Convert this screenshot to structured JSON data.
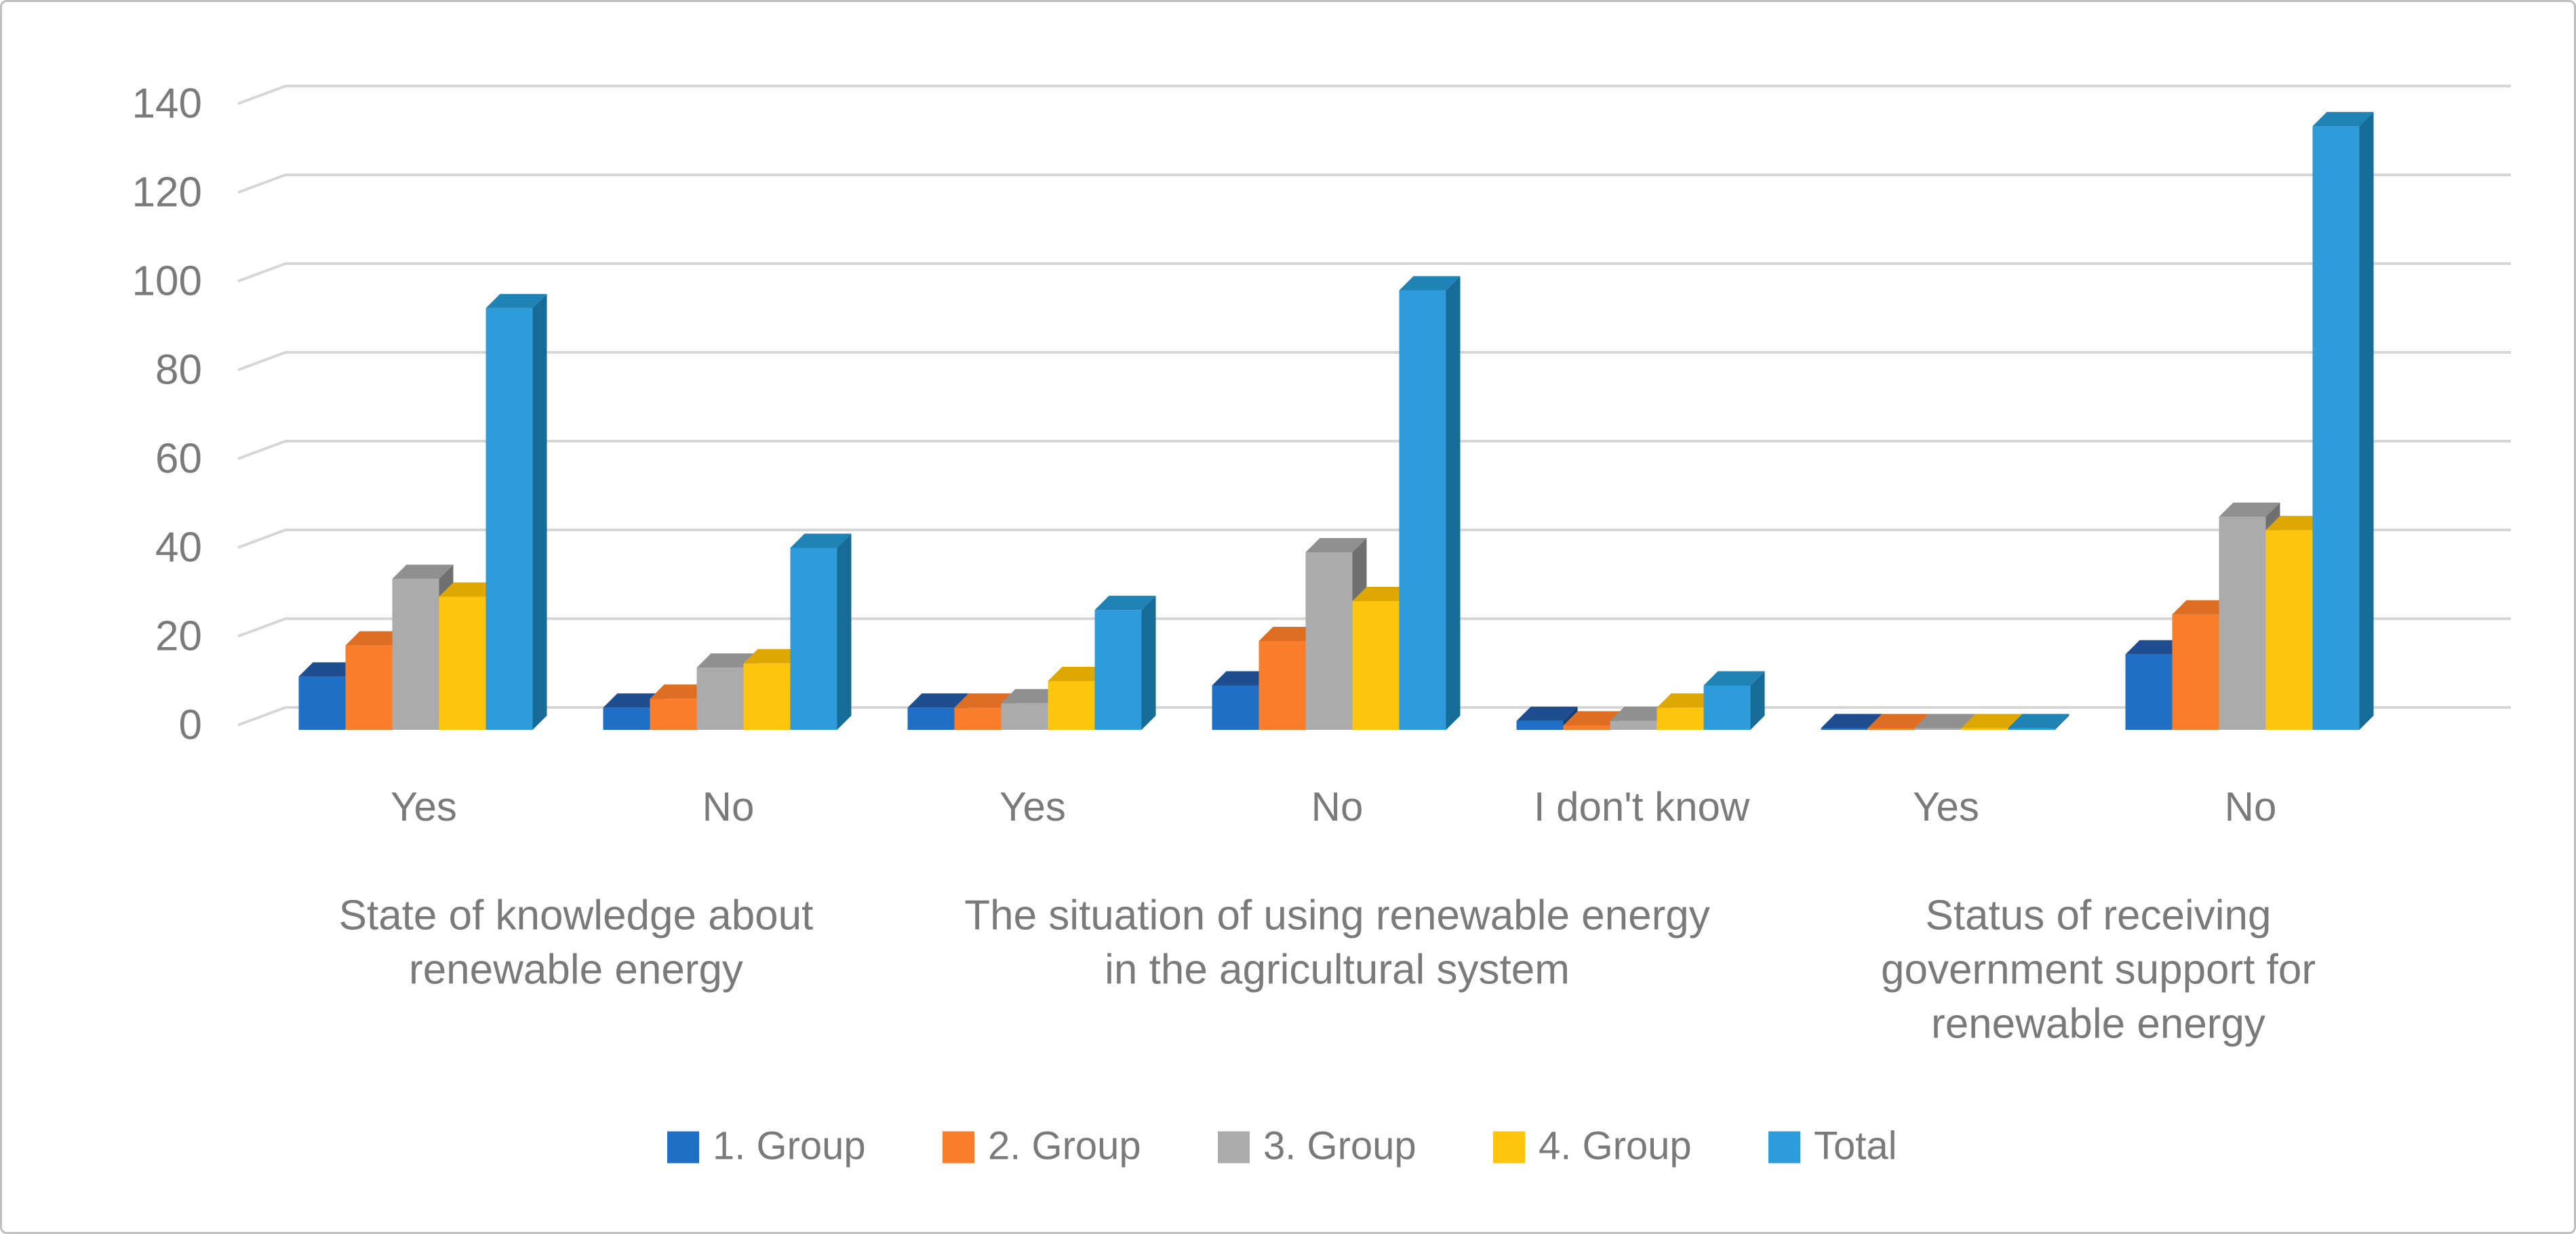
{
  "figure": {
    "background": "#FFFFFF",
    "border_color": "#BFBFBF",
    "text_color": "#7A7A7A",
    "grid_color": "#D6D6D6"
  },
  "chart_data": {
    "type": "bar",
    "style": "3d-clustered-column",
    "title": "",
    "grid": true,
    "legend_position": "bottom",
    "y_axis": {
      "min": 0,
      "max": 140,
      "step": 20,
      "ticks": [
        "0",
        "20",
        "40",
        "60",
        "80",
        "100",
        "120",
        "140"
      ]
    },
    "categories": [
      "Yes",
      "No",
      "Yes",
      "No",
      "I don't know",
      "Yes",
      "No"
    ],
    "questions": [
      {
        "label": "State of knowledge about renewable energy",
        "lines": [
          "State of knowledge about",
          "renewable energy"
        ],
        "span": [
          0,
          1
        ]
      },
      {
        "label": "The situation of using renewable energy in the agricultural system",
        "lines": [
          "The situation of using renewable energy",
          "in the agricultural system"
        ],
        "span": [
          2,
          4
        ]
      },
      {
        "label": "Status of receiving government support for renewable energy",
        "lines": [
          "Status of receiving",
          "government support for",
          "renewable energy"
        ],
        "span": [
          5,
          6
        ]
      }
    ],
    "series": [
      {
        "name": "1. Group",
        "color": "#1F6FC7",
        "top_color": "#1F4E90",
        "side_color": "#163E73",
        "values": [
          12,
          5,
          5,
          10,
          2,
          0,
          17
        ]
      },
      {
        "name": "2. Group",
        "color": "#F97D2B",
        "top_color": "#DE6E22",
        "side_color": "#BC5812",
        "values": [
          19,
          7,
          5,
          20,
          1,
          0,
          26
        ]
      },
      {
        "name": "3. Group",
        "color": "#ABABAB",
        "top_color": "#909090",
        "side_color": "#6F6F6F",
        "values": [
          34,
          14,
          6,
          40,
          2,
          0,
          48
        ]
      },
      {
        "name": "4. Group",
        "color": "#FFC50D",
        "top_color": "#DFA701",
        "side_color": "#B07D00",
        "values": [
          30,
          15,
          11,
          29,
          5,
          0,
          45
        ]
      },
      {
        "name": "Total",
        "color": "#2E9BDA",
        "top_color": "#1F83B6",
        "side_color": "#166C96",
        "values": [
          95,
          41,
          27,
          99,
          10,
          0,
          136
        ]
      }
    ],
    "legend": {
      "position": "bottom",
      "labels": [
        "1. Group",
        "2. Group",
        "3. Group",
        "4. Group",
        "Total"
      ]
    }
  }
}
